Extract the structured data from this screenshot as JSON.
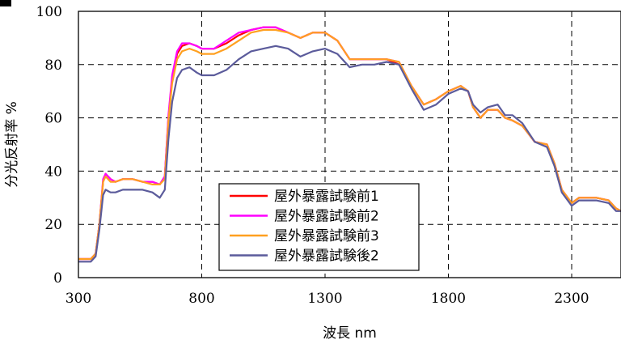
{
  "chart_data": {
    "type": "line",
    "title": "",
    "xlabel": "波長 nm",
    "ylabel": "分光反射率 %",
    "xlim": [
      300,
      2500
    ],
    "ylim": [
      0,
      100
    ],
    "xticks": [
      300,
      800,
      1300,
      1800,
      2300
    ],
    "yticks": [
      0,
      20,
      40,
      60,
      80,
      100
    ],
    "grid": true,
    "legend_position": "bottom-left",
    "series": [
      {
        "name": "屋外暴露試験前1",
        "color": "#ff0000",
        "x": [
          300,
          320,
          350,
          370,
          385,
          400,
          410,
          430,
          450,
          480,
          520,
          560,
          600,
          630,
          650,
          665,
          680,
          700,
          720,
          750,
          780,
          800,
          850,
          900,
          950,
          1000,
          1050,
          1100,
          1150,
          1200,
          1250,
          1300,
          1350,
          1400,
          1450,
          1500,
          1550,
          1600,
          1650,
          1700,
          1750,
          1800,
          1850,
          1880,
          1900,
          1930,
          1960,
          2000,
          2030,
          2060,
          2100,
          2150,
          2200,
          2230,
          2260,
          2300,
          2330,
          2360,
          2400,
          2450,
          2480,
          2500
        ],
        "values": [
          7,
          7,
          7,
          9,
          20,
          36,
          39,
          37,
          36,
          37,
          37,
          36,
          36,
          35,
          38,
          60,
          75,
          84,
          87,
          88,
          87,
          86,
          86,
          88,
          91,
          93,
          94,
          94,
          92,
          90,
          92,
          92,
          89,
          82,
          82,
          82,
          82,
          80,
          72,
          65,
          67,
          70,
          72,
          70,
          64,
          60,
          63,
          63,
          60,
          59,
          57,
          51,
          50,
          43,
          33,
          28,
          30,
          30,
          30,
          29,
          26,
          25
        ]
      },
      {
        "name": "屋外暴露試験前2",
        "color": "#ff00ff",
        "x": [
          300,
          320,
          350,
          370,
          385,
          400,
          410,
          430,
          450,
          480,
          520,
          560,
          600,
          630,
          650,
          665,
          680,
          700,
          720,
          750,
          780,
          800,
          850,
          900,
          950,
          1000,
          1050,
          1100,
          1150,
          1200,
          1250,
          1300,
          1350,
          1400,
          1450,
          1500,
          1550,
          1600,
          1650,
          1700,
          1750,
          1800,
          1850,
          1880,
          1900,
          1930,
          1960,
          2000,
          2030,
          2060,
          2100,
          2150,
          2200,
          2230,
          2260,
          2300,
          2330,
          2360,
          2400,
          2450,
          2480,
          2500
        ],
        "values": [
          7,
          7,
          7,
          9,
          20,
          37,
          39,
          37,
          36,
          37,
          37,
          36,
          36,
          35,
          38,
          61,
          76,
          85,
          88,
          88,
          87,
          86,
          86,
          89,
          92,
          93,
          94,
          94,
          92,
          90,
          92,
          92,
          89,
          82,
          82,
          82,
          82,
          81,
          72,
          65,
          67,
          70,
          72,
          70,
          64,
          60,
          63,
          63,
          60,
          59,
          57,
          51,
          50,
          43,
          33,
          28,
          30,
          30,
          30,
          29,
          26,
          25
        ]
      },
      {
        "name": "屋外暴露試験前3",
        "color": "#ffa020",
        "x": [
          300,
          320,
          350,
          370,
          385,
          400,
          410,
          430,
          450,
          480,
          520,
          560,
          600,
          630,
          650,
          665,
          680,
          700,
          720,
          750,
          780,
          800,
          850,
          900,
          950,
          1000,
          1050,
          1100,
          1150,
          1200,
          1250,
          1300,
          1350,
          1400,
          1450,
          1500,
          1550,
          1600,
          1650,
          1700,
          1750,
          1800,
          1850,
          1880,
          1900,
          1930,
          1960,
          2000,
          2030,
          2060,
          2100,
          2150,
          2200,
          2230,
          2260,
          2300,
          2330,
          2360,
          2400,
          2450,
          2480,
          2500
        ],
        "values": [
          7,
          7,
          7,
          9,
          20,
          36,
          38,
          36,
          36,
          37,
          37,
          36,
          35,
          35,
          37,
          59,
          73,
          82,
          85,
          86,
          85,
          84,
          84,
          86,
          89,
          92,
          93,
          93,
          92,
          90,
          92,
          92,
          89,
          82,
          82,
          82,
          82,
          81,
          72,
          65,
          67,
          70,
          72,
          70,
          64,
          60,
          63,
          63,
          60,
          59,
          57,
          51,
          50,
          43,
          33,
          28,
          30,
          30,
          30,
          29,
          26,
          25
        ]
      },
      {
        "name": "屋外暴露試験後2",
        "color": "#5b5b9b",
        "x": [
          300,
          320,
          350,
          370,
          385,
          400,
          410,
          430,
          450,
          480,
          520,
          560,
          600,
          630,
          650,
          665,
          680,
          700,
          720,
          750,
          780,
          800,
          850,
          900,
          950,
          1000,
          1050,
          1100,
          1150,
          1200,
          1250,
          1300,
          1350,
          1400,
          1450,
          1500,
          1550,
          1600,
          1650,
          1700,
          1750,
          1800,
          1850,
          1880,
          1900,
          1930,
          1960,
          2000,
          2030,
          2060,
          2100,
          2150,
          2200,
          2230,
          2260,
          2300,
          2330,
          2360,
          2400,
          2450,
          2480,
          2500
        ],
        "values": [
          6,
          6,
          6,
          8,
          18,
          31,
          33,
          32,
          32,
          33,
          33,
          33,
          32,
          30,
          33,
          52,
          66,
          75,
          78,
          79,
          77,
          76,
          76,
          78,
          82,
          85,
          86,
          87,
          86,
          83,
          85,
          86,
          84,
          79,
          80,
          80,
          81,
          80,
          71,
          63,
          65,
          69,
          71,
          70,
          65,
          62,
          64,
          65,
          61,
          61,
          58,
          51,
          49,
          42,
          32,
          27,
          29,
          29,
          29,
          28,
          25,
          25
        ]
      }
    ]
  }
}
